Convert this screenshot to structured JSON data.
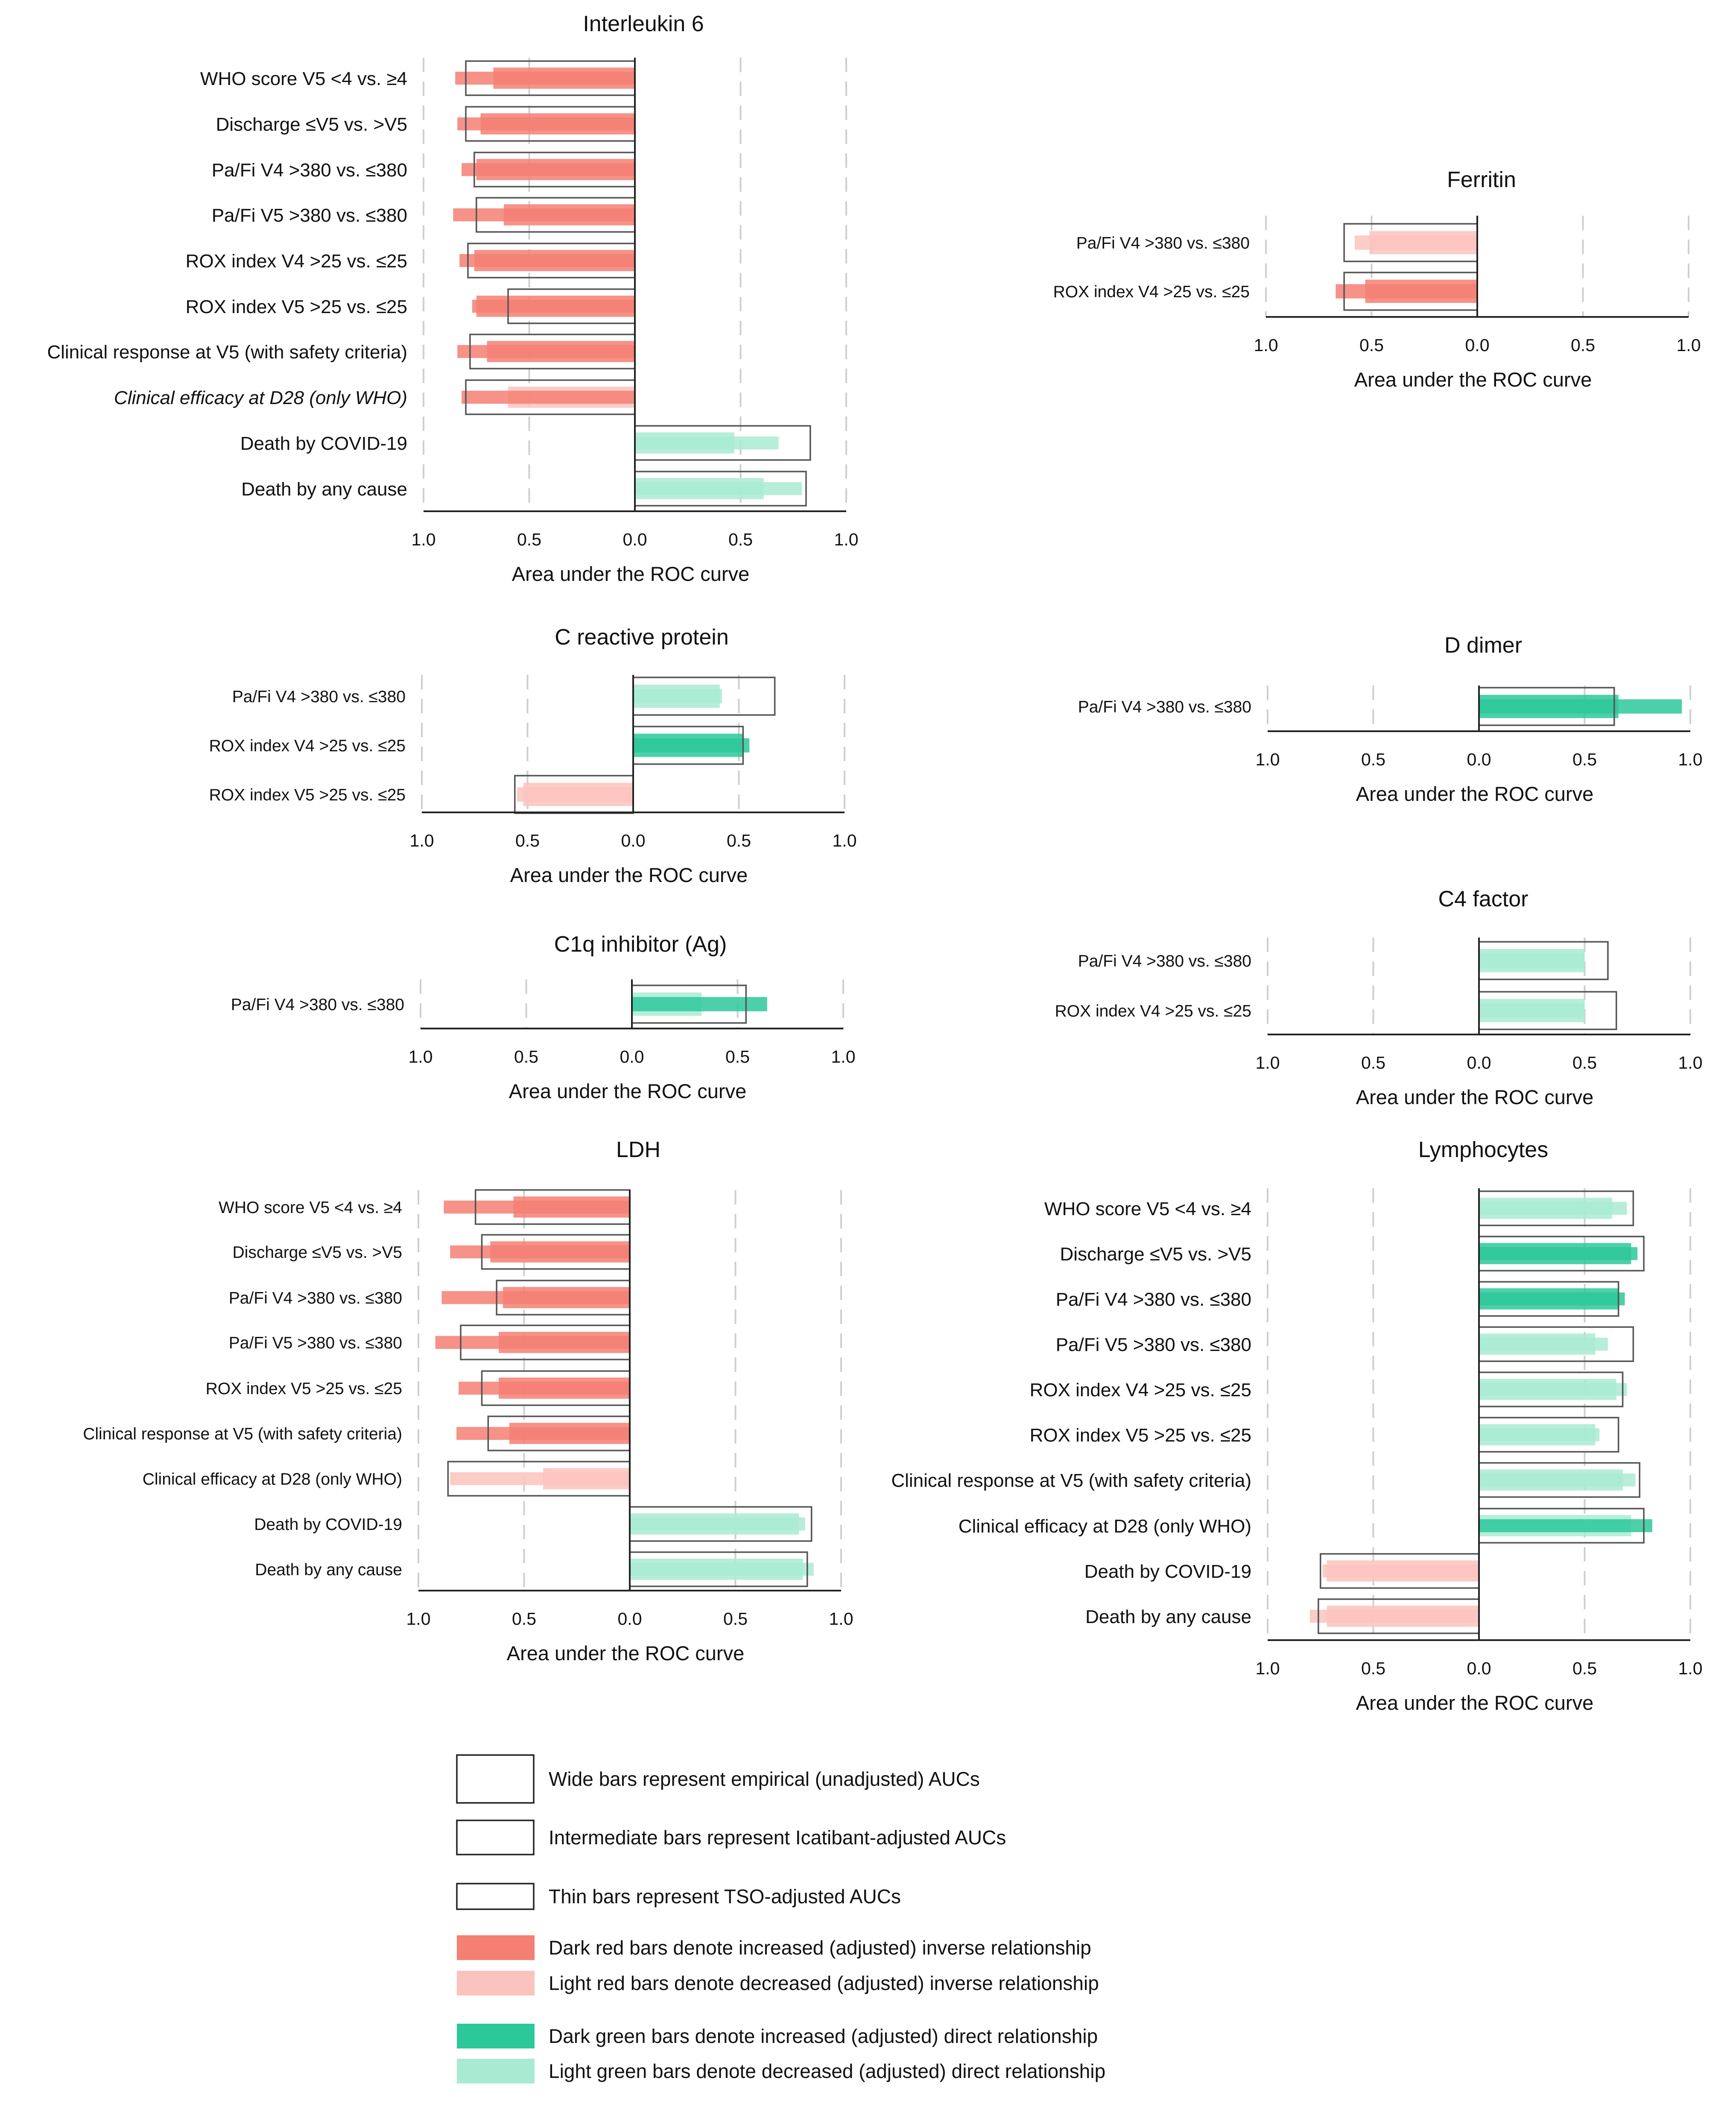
{
  "colors": {
    "dark_red": "#f47f73",
    "light_red": "#fbc3bd",
    "dark_green": "#2dc89a",
    "light_green": "#a9ebd2",
    "outline": "#555555",
    "grid": "#cfcfcf",
    "axis": "#222222"
  },
  "axis_common": {
    "xlabel": "Area under the ROC curve",
    "tick_labels": [
      "1.0",
      "0.5",
      "0.0",
      "0.5",
      "1.0"
    ]
  },
  "legend": {
    "items": [
      {
        "kind": "outline-wide",
        "label": "Wide bars represent empirical (unadjusted) AUCs"
      },
      {
        "kind": "outline-mid",
        "label": "Intermediate bars represent Icatibant-adjusted AUCs"
      },
      {
        "kind": "outline-thin",
        "label": "Thin bars represent TSO-adjusted AUCs"
      },
      {
        "kind": "fill-dark-red",
        "label": "Dark red bars denote increased (adjusted) inverse relationship"
      },
      {
        "kind": "fill-light-red",
        "label": "Light red bars denote decreased (adjusted) inverse relationship"
      },
      {
        "kind": "fill-dark-green",
        "label": "Dark green bars denote increased (adjusted) direct relationship"
      },
      {
        "kind": "fill-light-green",
        "label": "Light green bars denote decreased (adjusted) direct relationship"
      }
    ]
  },
  "chart_data": [
    {
      "type": "bar",
      "title": "Interleukin 6",
      "xlabel": "Area under the ROC curve",
      "xlim": [
        -1,
        1
      ],
      "categories": [
        "WHO score V5 <4 vs. ≥4",
        "Discharge ≤V5 vs. >V5",
        "Pa/Fi V4 >380 vs. ≤380",
        "Pa/Fi V5 >380 vs. ≤380",
        "ROX index V4 >25 vs. ≤25",
        "ROX index V5 >25 vs. ≤25",
        "Clinical response at V5 (with safety criteria)",
        "Clinical efficacy at D28 (only WHO)",
        "Death by COVID-19",
        "Death by any cause"
      ],
      "italic_categories": [
        7
      ],
      "series": [
        {
          "name": "Empirical (unadjusted) AUC",
          "values": [
            -0.8,
            -0.8,
            -0.76,
            -0.75,
            -0.79,
            -0.6,
            -0.78,
            -0.8,
            0.83,
            0.81
          ]
        },
        {
          "name": "Icatibant-adjusted AUC",
          "values": [
            -0.67,
            -0.73,
            -0.75,
            -0.62,
            -0.76,
            -0.75,
            -0.7,
            -0.6,
            0.47,
            0.61
          ],
          "relation": [
            "inc",
            "inc",
            "inc",
            "inc",
            "inc",
            "inc",
            "inc",
            "dec",
            "dec",
            "dec"
          ]
        },
        {
          "name": "TSO-adjusted AUC",
          "values": [
            -0.85,
            -0.84,
            -0.82,
            -0.86,
            -0.83,
            -0.77,
            -0.84,
            -0.82,
            0.68,
            0.79
          ],
          "relation": [
            "inc",
            "inc",
            "inc",
            "inc",
            "inc",
            "inc",
            "inc",
            "inc",
            "dec",
            "dec"
          ]
        }
      ]
    },
    {
      "type": "bar",
      "title": "Ferritin",
      "xlabel": "Area under the ROC curve",
      "xlim": [
        -1,
        1
      ],
      "categories": [
        "Pa/Fi V4 >380 vs. ≤380",
        "ROX index V4 >25 vs. ≤25"
      ],
      "series": [
        {
          "name": "Empirical (unadjusted) AUC",
          "values": [
            -0.63,
            -0.63
          ]
        },
        {
          "name": "Icatibant-adjusted AUC",
          "values": [
            -0.51,
            -0.53
          ],
          "relation": [
            "dec",
            "inc"
          ]
        },
        {
          "name": "TSO-adjusted AUC",
          "values": [
            -0.58,
            -0.67
          ],
          "relation": [
            "dec",
            "inc"
          ]
        }
      ]
    },
    {
      "type": "bar",
      "title": "C reactive protein",
      "xlabel": "Area under the ROC curve",
      "xlim": [
        -1,
        1
      ],
      "categories": [
        "Pa/Fi V4 >380 vs. ≤380",
        "ROX index V4 >25 vs. ≤25",
        "ROX index V5 >25 vs. ≤25"
      ],
      "series": [
        {
          "name": "Empirical (unadjusted) AUC",
          "values": [
            0.67,
            0.52,
            -0.56
          ]
        },
        {
          "name": "Icatibant-adjusted AUC",
          "values": [
            0.41,
            0.52,
            -0.52
          ],
          "relation": [
            "dec",
            "inc",
            "dec"
          ]
        },
        {
          "name": "TSO-adjusted AUC",
          "values": [
            0.42,
            0.55,
            -0.55
          ],
          "relation": [
            "dec",
            "inc",
            "dec"
          ]
        }
      ]
    },
    {
      "type": "bar",
      "title": "D dimer",
      "xlabel": "Area under the ROC curve",
      "xlim": [
        -1,
        1
      ],
      "categories": [
        "Pa/Fi V4 >380 vs. ≤380"
      ],
      "series": [
        {
          "name": "Empirical (unadjusted) AUC",
          "values": [
            0.64
          ]
        },
        {
          "name": "Icatibant-adjusted AUC",
          "values": [
            0.66
          ],
          "relation": [
            "inc"
          ]
        },
        {
          "name": "TSO-adjusted AUC",
          "values": [
            0.96
          ],
          "relation": [
            "inc"
          ]
        }
      ]
    },
    {
      "type": "bar",
      "title": "C1q inhibitor (Ag)",
      "xlabel": "Area under the ROC curve",
      "xlim": [
        -1,
        1
      ],
      "categories": [
        "Pa/Fi V4 >380 vs. ≤380"
      ],
      "series": [
        {
          "name": "Empirical (unadjusted) AUC",
          "values": [
            0.54
          ]
        },
        {
          "name": "Icatibant-adjusted AUC",
          "values": [
            0.33
          ],
          "relation": [
            "dec"
          ]
        },
        {
          "name": "TSO-adjusted AUC",
          "values": [
            0.64
          ],
          "relation": [
            "inc"
          ]
        }
      ]
    },
    {
      "type": "bar",
      "title": "C4 factor",
      "xlabel": "Area under the ROC curve",
      "xlim": [
        -1,
        1
      ],
      "categories": [
        "Pa/Fi V4 >380 vs. ≤380",
        "ROX index V4 >25 vs. ≤25"
      ],
      "series": [
        {
          "name": "Empirical (unadjusted) AUC",
          "values": [
            0.61,
            0.65
          ]
        },
        {
          "name": "Icatibant-adjusted AUC",
          "values": [
            0.5,
            0.5
          ],
          "relation": [
            "dec",
            "dec"
          ]
        },
        {
          "name": "TSO-adjusted AUC",
          "values": [
            0.5,
            0.5
          ],
          "relation": [
            "dec",
            "dec"
          ]
        }
      ]
    },
    {
      "type": "bar",
      "title": "LDH",
      "xlabel": "Area under the ROC curve",
      "xlim": [
        -1,
        1
      ],
      "categories": [
        "WHO score V5 <4 vs. ≥4",
        "Discharge ≤V5 vs. >V5",
        "Pa/Fi V4 >380 vs. ≤380",
        "Pa/Fi V5 >380 vs. ≤380",
        "ROX index V5 >25 vs. ≤25",
        "Clinical response at V5 (with safety criteria)",
        "Clinical efficacy at D28 (only WHO)",
        "Death by COVID-19",
        "Death by any cause"
      ],
      "series": [
        {
          "name": "Empirical (unadjusted) AUC",
          "values": [
            -0.73,
            -0.7,
            -0.63,
            -0.8,
            -0.7,
            -0.67,
            -0.86,
            0.86,
            0.84
          ]
        },
        {
          "name": "Icatibant-adjusted AUC",
          "values": [
            -0.55,
            -0.66,
            -0.6,
            -0.62,
            -0.62,
            -0.57,
            -0.41,
            0.8,
            0.82
          ],
          "relation": [
            "inc",
            "inc",
            "inc",
            "inc",
            "inc",
            "inc",
            "dec",
            "dec",
            "dec"
          ]
        },
        {
          "name": "TSO-adjusted AUC",
          "values": [
            -0.88,
            -0.85,
            -0.89,
            -0.92,
            -0.81,
            -0.82,
            -0.85,
            0.83,
            0.87
          ],
          "relation": [
            "inc",
            "inc",
            "inc",
            "inc",
            "inc",
            "inc",
            "dec",
            "dec",
            "dec"
          ]
        }
      ]
    },
    {
      "type": "bar",
      "title": "Lymphocytes",
      "xlabel": "Area under the ROC curve",
      "xlim": [
        -1,
        1
      ],
      "categories": [
        "WHO score V5 <4 vs. ≥4",
        "Discharge ≤V5 vs. >V5",
        "Pa/Fi V4 >380 vs. ≤380",
        "Pa/Fi V5 >380 vs. ≤380",
        "ROX index V4 >25 vs. ≤25",
        "ROX index V5 >25 vs. ≤25",
        "Clinical response at V5 (with safety criteria)",
        "Clinical efficacy at D28 (only WHO)",
        "Death by COVID-19",
        "Death by any cause"
      ],
      "series": [
        {
          "name": "Empirical (unadjusted) AUC",
          "values": [
            0.73,
            0.78,
            0.66,
            0.73,
            0.68,
            0.66,
            0.76,
            0.78,
            -0.75,
            -0.76
          ]
        },
        {
          "name": "Icatibant-adjusted AUC",
          "values": [
            0.63,
            0.72,
            0.66,
            0.55,
            0.65,
            0.55,
            0.68,
            0.72,
            -0.72,
            -0.72
          ],
          "relation": [
            "dec",
            "inc",
            "inc",
            "dec",
            "dec",
            "dec",
            "dec",
            "dec",
            "dec",
            "dec"
          ]
        },
        {
          "name": "TSO-adjusted AUC",
          "values": [
            0.7,
            0.75,
            0.69,
            0.61,
            0.7,
            0.57,
            0.74,
            0.82,
            -0.74,
            -0.8
          ],
          "relation": [
            "dec",
            "inc",
            "inc",
            "dec",
            "dec",
            "dec",
            "dec",
            "inc",
            "dec",
            "dec"
          ]
        }
      ]
    }
  ]
}
